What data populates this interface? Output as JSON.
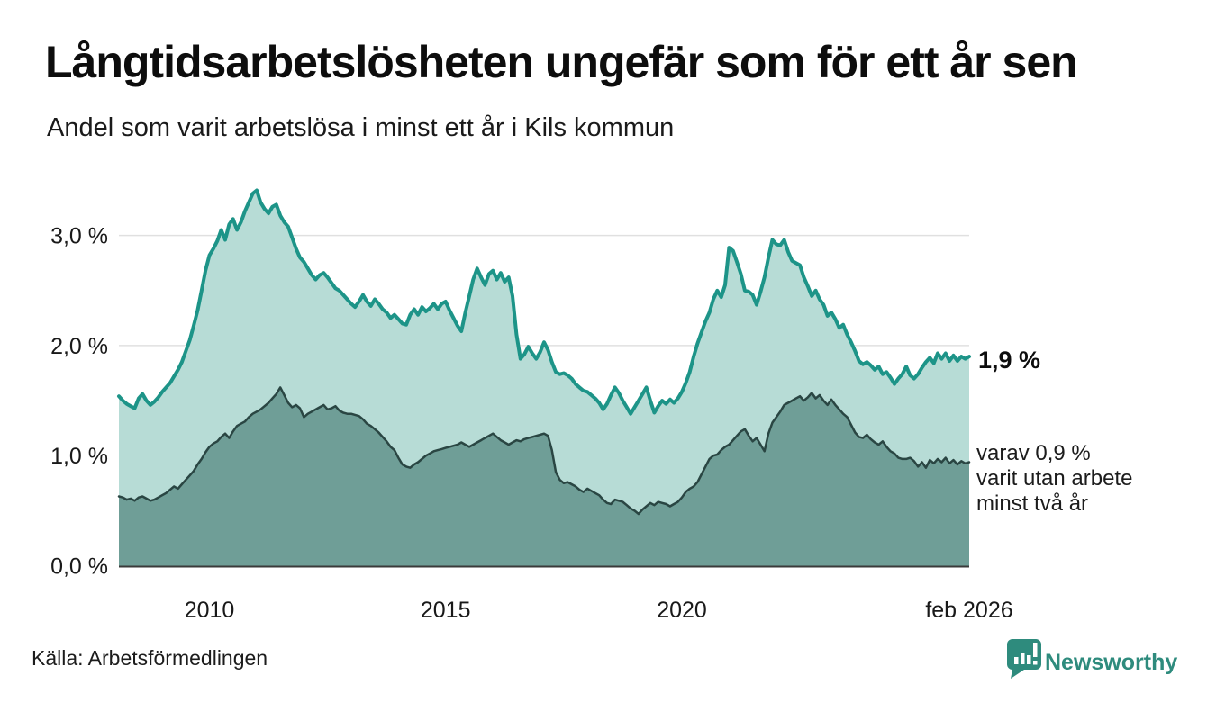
{
  "header": {
    "title": "Långtidsarbetslösheten ungefär som för ett år sen",
    "subtitle": "Andel som varit arbetslösa i minst ett år i Kils kommun"
  },
  "annotations": {
    "total_label": "1,9 %",
    "subset_lines": [
      "varav 0,9 %",
      "varit utan arbete",
      "minst två år"
    ]
  },
  "footer": {
    "source": "Källa: Arbetsförmedlingen",
    "brand": "Newsworthy"
  },
  "colors": {
    "total_line": "#1d9488",
    "total_fill": "#b7dcd6",
    "subset_line": "#2a4643",
    "subset_fill": "#6f9e97",
    "gridline": "#e0e0e0",
    "baseline": "#3a3a3a",
    "brand_teal": "#2e8b7d"
  },
  "chart_data": {
    "type": "area",
    "title": "Långtidsarbetslösheten ungefär som för ett år sen",
    "subtitle": "Andel som varit arbetslösa i minst ett år i Kils kommun",
    "frequency": "monthly",
    "x_start": "feb 2008",
    "x_end": "feb 2026",
    "ylim": [
      0,
      3.5
    ],
    "grid": true,
    "y_ticks": [
      {
        "label": "3,0 %",
        "value": 3.0
      },
      {
        "label": "2,0 %",
        "value": 2.0
      },
      {
        "label": "1,0 %",
        "value": 1.0
      },
      {
        "label": "0,0 %",
        "value": 0.0
      }
    ],
    "x_ticks": [
      {
        "label": "2010",
        "t": 2010.0
      },
      {
        "label": "2015",
        "t": 2015.0
      },
      {
        "label": "2020",
        "t": 2020.0
      },
      {
        "label": "feb 2026",
        "t": 2026.0833
      }
    ],
    "end_values": {
      "total": "1,9 %",
      "two_years": "0,9 %"
    },
    "series": [
      {
        "name": "Andel arbetslösa minst ett år",
        "color": "#1d9488",
        "fill": "#b7dcd6",
        "line_width": 4,
        "values": [
          1.54,
          1.5,
          1.47,
          1.45,
          1.43,
          1.52,
          1.56,
          1.5,
          1.46,
          1.49,
          1.53,
          1.58,
          1.62,
          1.66,
          1.72,
          1.78,
          1.85,
          1.95,
          2.05,
          2.18,
          2.32,
          2.5,
          2.68,
          2.82,
          2.88,
          2.95,
          3.05,
          2.96,
          3.1,
          3.15,
          3.05,
          3.12,
          3.22,
          3.3,
          3.38,
          3.41,
          3.3,
          3.24,
          3.2,
          3.26,
          3.28,
          3.18,
          3.12,
          3.08,
          2.98,
          2.88,
          2.8,
          2.76,
          2.7,
          2.64,
          2.6,
          2.64,
          2.66,
          2.62,
          2.57,
          2.52,
          2.5,
          2.46,
          2.42,
          2.38,
          2.35,
          2.4,
          2.46,
          2.4,
          2.36,
          2.42,
          2.38,
          2.33,
          2.3,
          2.25,
          2.28,
          2.24,
          2.2,
          2.19,
          2.28,
          2.33,
          2.28,
          2.35,
          2.31,
          2.34,
          2.38,
          2.33,
          2.38,
          2.4,
          2.32,
          2.25,
          2.18,
          2.13,
          2.3,
          2.45,
          2.6,
          2.7,
          2.62,
          2.55,
          2.65,
          2.68,
          2.6,
          2.66,
          2.58,
          2.62,
          2.45,
          2.1,
          1.88,
          1.92,
          1.99,
          1.93,
          1.88,
          1.94,
          2.03,
          1.96,
          1.85,
          1.76,
          1.74,
          1.75,
          1.73,
          1.7,
          1.65,
          1.62,
          1.59,
          1.58,
          1.55,
          1.52,
          1.48,
          1.42,
          1.47,
          1.55,
          1.62,
          1.57,
          1.5,
          1.44,
          1.38,
          1.44,
          1.5,
          1.56,
          1.62,
          1.5,
          1.39,
          1.45,
          1.5,
          1.47,
          1.51,
          1.48,
          1.52,
          1.58,
          1.66,
          1.76,
          1.9,
          2.02,
          2.12,
          2.22,
          2.3,
          2.42,
          2.5,
          2.44,
          2.55,
          2.89,
          2.86,
          2.76,
          2.65,
          2.5,
          2.49,
          2.46,
          2.37,
          2.49,
          2.62,
          2.8,
          2.96,
          2.92,
          2.91,
          2.96,
          2.85,
          2.77,
          2.75,
          2.73,
          2.62,
          2.54,
          2.45,
          2.5,
          2.42,
          2.37,
          2.27,
          2.3,
          2.24,
          2.16,
          2.19,
          2.1,
          2.03,
          1.95,
          1.86,
          1.83,
          1.85,
          1.82,
          1.78,
          1.81,
          1.74,
          1.76,
          1.71,
          1.65,
          1.7,
          1.74,
          1.81,
          1.73,
          1.7,
          1.74,
          1.8,
          1.85,
          1.89,
          1.84,
          1.93,
          1.88,
          1.93,
          1.86,
          1.91,
          1.86,
          1.9,
          1.88,
          1.9
        ]
      },
      {
        "name": "varav utan arbete minst två år",
        "color": "#2a4643",
        "fill": "#6f9e97",
        "line_width": 2.5,
        "values": [
          0.63,
          0.62,
          0.6,
          0.61,
          0.59,
          0.62,
          0.63,
          0.61,
          0.59,
          0.6,
          0.62,
          0.64,
          0.66,
          0.69,
          0.72,
          0.7,
          0.74,
          0.78,
          0.82,
          0.86,
          0.92,
          0.97,
          1.03,
          1.08,
          1.11,
          1.13,
          1.17,
          1.2,
          1.16,
          1.22,
          1.27,
          1.29,
          1.31,
          1.35,
          1.38,
          1.4,
          1.42,
          1.45,
          1.48,
          1.52,
          1.56,
          1.62,
          1.55,
          1.48,
          1.44,
          1.46,
          1.43,
          1.35,
          1.38,
          1.4,
          1.42,
          1.44,
          1.46,
          1.42,
          1.43,
          1.45,
          1.41,
          1.39,
          1.38,
          1.38,
          1.37,
          1.36,
          1.33,
          1.29,
          1.27,
          1.24,
          1.21,
          1.17,
          1.13,
          1.08,
          1.05,
          0.98,
          0.92,
          0.9,
          0.89,
          0.92,
          0.94,
          0.97,
          1.0,
          1.02,
          1.04,
          1.05,
          1.06,
          1.07,
          1.08,
          1.09,
          1.1,
          1.12,
          1.1,
          1.08,
          1.1,
          1.12,
          1.14,
          1.16,
          1.18,
          1.2,
          1.17,
          1.14,
          1.12,
          1.1,
          1.12,
          1.14,
          1.13,
          1.15,
          1.16,
          1.17,
          1.18,
          1.19,
          1.2,
          1.18,
          1.05,
          0.85,
          0.78,
          0.75,
          0.76,
          0.74,
          0.72,
          0.69,
          0.67,
          0.7,
          0.68,
          0.66,
          0.64,
          0.6,
          0.57,
          0.56,
          0.6,
          0.59,
          0.58,
          0.55,
          0.52,
          0.5,
          0.47,
          0.51,
          0.54,
          0.57,
          0.55,
          0.58,
          0.57,
          0.56,
          0.54,
          0.56,
          0.58,
          0.62,
          0.67,
          0.7,
          0.72,
          0.76,
          0.83,
          0.9,
          0.97,
          1.0,
          1.01,
          1.05,
          1.08,
          1.1,
          1.14,
          1.18,
          1.22,
          1.24,
          1.18,
          1.13,
          1.16,
          1.1,
          1.04,
          1.2,
          1.3,
          1.35,
          1.4,
          1.46,
          1.48,
          1.5,
          1.52,
          1.54,
          1.5,
          1.53,
          1.57,
          1.52,
          1.55,
          1.5,
          1.46,
          1.51,
          1.46,
          1.42,
          1.38,
          1.35,
          1.28,
          1.21,
          1.17,
          1.16,
          1.19,
          1.15,
          1.12,
          1.1,
          1.13,
          1.08,
          1.04,
          1.02,
          0.98,
          0.97,
          0.97,
          0.98,
          0.95,
          0.9,
          0.94,
          0.89,
          0.96,
          0.93,
          0.97,
          0.94,
          0.98,
          0.93,
          0.96,
          0.92,
          0.95,
          0.93,
          0.94
        ]
      }
    ]
  }
}
